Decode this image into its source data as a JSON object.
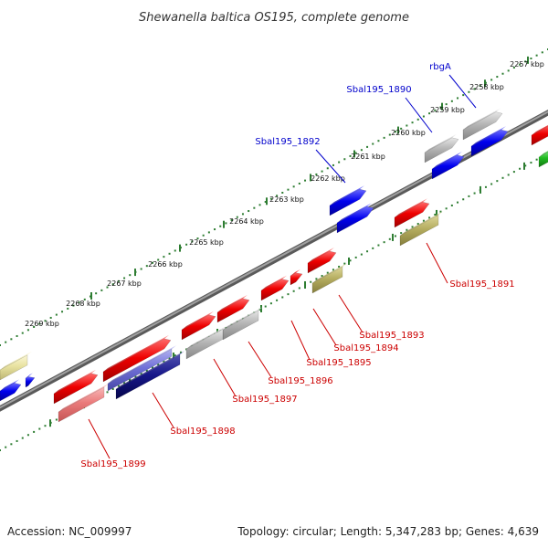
{
  "title": "Shewanella baltica OS195, complete genome",
  "footer": {
    "accession": "Accession: NC_009997",
    "summary": "Topology: circular; Length: 5,347,283 bp; Genes: 4,639"
  },
  "colors": {
    "backbone": "#808080",
    "scale_dots": "#2e7d32",
    "upper_label": "#0000cc",
    "lower_label": "#cc0000",
    "red": "#e60000",
    "blue": "#0000e0",
    "grey": "#b4b4b4",
    "olive": "#b5ad60",
    "yellow": "#e8e2a0",
    "pink": "#ea7a7a",
    "navy": "#17178a",
    "lavender": "#7070d8",
    "green": "#22bb22"
  },
  "scale_labels": [
    "2257 kbp",
    "2258 kbp",
    "2259 kbp",
    "2260 kbp",
    "2261 kbp",
    "2262 kbp",
    "2263 kbp",
    "2264 kbp",
    "2265 kbp",
    "2266 kbp",
    "2267 kbp",
    "2268 kbp",
    "2269 kbp"
  ],
  "upper_labels": [
    "rbgA",
    "Sbal195_1890",
    "Sbal195_1892"
  ],
  "lower_labels": [
    "Sbal195_1891",
    "Sbal195_1893",
    "Sbal195_1894",
    "Sbal195_1895",
    "Sbal195_1896",
    "Sbal195_1897",
    "Sbal195_1898",
    "Sbal195_1899"
  ]
}
